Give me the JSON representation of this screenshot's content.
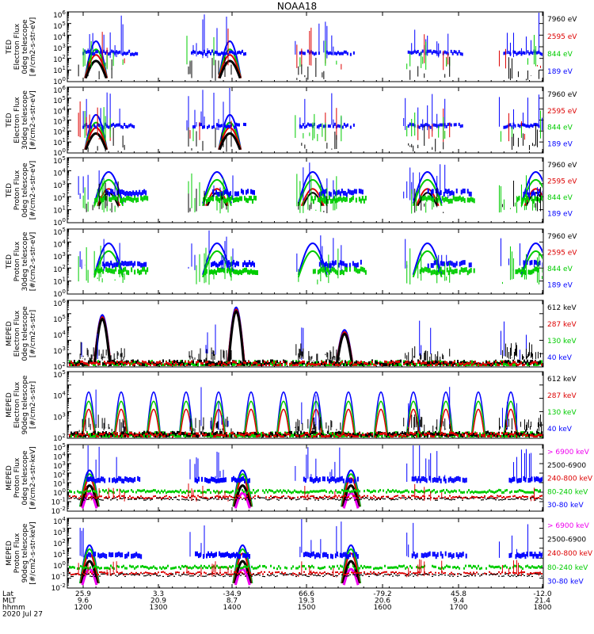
{
  "title": "NOAA18",
  "panels": [
    {
      "id": "p1",
      "ylabel": [
        "TED",
        "Electron Flux",
        "0deg telescope",
        "[#/cm2-s-str-eV]"
      ],
      "ylim": [
        1,
        1000000
      ],
      "ticks": [
        "10^6",
        "10^5",
        "10^4",
        "10^3",
        "10^2",
        "10^1",
        "10^0"
      ],
      "legend": [
        {
          "text": "7960 eV",
          "color": "#000000"
        },
        {
          "text": "2595 eV",
          "color": "#dd0000"
        },
        {
          "text": "844 eV",
          "color": "#00cc00"
        },
        {
          "text": "189 eV",
          "color": "#0000ff"
        }
      ]
    },
    {
      "id": "p2",
      "ylabel": [
        "TED",
        "Electron Flux",
        "30deg telescope",
        "[#/cm2-s-str-eV]"
      ],
      "ylim": [
        1,
        1000000
      ],
      "ticks": [
        "10^6",
        "10^5",
        "10^4",
        "10^3",
        "10^2",
        "10^1",
        "10^0"
      ],
      "legend": [
        {
          "text": "7960 eV",
          "color": "#000000"
        },
        {
          "text": "2595 eV",
          "color": "#dd0000"
        },
        {
          "text": "844 eV",
          "color": "#00cc00"
        },
        {
          "text": "189 eV",
          "color": "#0000ff"
        }
      ]
    },
    {
      "id": "p3",
      "ylabel": [
        "TED",
        "Proton Flux",
        "0deg telescope",
        "[#/cm2-s-str-eV]"
      ],
      "ylim": [
        1,
        100000
      ],
      "ticks": [
        "10^5",
        "10^4",
        "10^3",
        "10^2",
        "10^1",
        "10^0"
      ],
      "legend": [
        {
          "text": "7960 eV",
          "color": "#000000"
        },
        {
          "text": "2595 eV",
          "color": "#dd0000"
        },
        {
          "text": "844 eV",
          "color": "#00cc00"
        },
        {
          "text": "189 eV",
          "color": "#0000ff"
        }
      ]
    },
    {
      "id": "p4",
      "ylabel": [
        "TED",
        "Proton Flux",
        "30deg telescope",
        "[#/cm2-s-str-eV]"
      ],
      "ylim": [
        1,
        100000
      ],
      "ticks": [
        "10^5",
        "10^4",
        "10^3",
        "10^2",
        "10^1",
        "10^0"
      ],
      "legend": [
        {
          "text": "7960 eV",
          "color": "#000000"
        },
        {
          "text": "2595 eV",
          "color": "#dd0000"
        },
        {
          "text": "844 eV",
          "color": "#00cc00"
        },
        {
          "text": "189 eV",
          "color": "#0000ff"
        }
      ]
    },
    {
      "id": "p5",
      "ylabel": [
        "MEPED",
        "Electron Flux",
        "0deg telescope",
        "[#/cm2-s-str]"
      ],
      "ylim": [
        100,
        10000000
      ],
      "ticks": [
        "10^6",
        "10^5",
        "10^4",
        "10^3",
        "10^2"
      ],
      "legend": [
        {
          "text": "612 keV",
          "color": "#000000"
        },
        {
          "text": "287 keV",
          "color": "#dd0000"
        },
        {
          "text": "130 keV",
          "color": "#00cc00"
        },
        {
          "text": "40 keV",
          "color": "#0000ff"
        }
      ]
    },
    {
      "id": "p6",
      "ylabel": [
        "MEPED",
        "Electron Flux",
        "90deg telescope",
        "[#/cm2-s-str]"
      ],
      "ylim": [
        100,
        10000000
      ],
      "ticks": [
        "10^5",
        "10^4",
        "10^3",
        "10^2"
      ],
      "legend": [
        {
          "text": "612 keV",
          "color": "#000000"
        },
        {
          "text": "287 keV",
          "color": "#dd0000"
        },
        {
          "text": "130 keV",
          "color": "#00cc00"
        },
        {
          "text": "40 keV",
          "color": "#0000ff"
        }
      ]
    },
    {
      "id": "p7",
      "ylabel": [
        "MEPED",
        "Proton Flux",
        "0deg telescope",
        "[#/cm2-s-str-keV]"
      ],
      "ylim": [
        0.01,
        100000
      ],
      "ticks": [
        "10^5",
        "10^4",
        "10^3",
        "10^2",
        "10^1",
        "10^0",
        "10^-1",
        "10^-2"
      ],
      "legend": [
        {
          "text": "> 6900 keV",
          "color": "#ee00ee"
        },
        {
          "text": "2500-6900",
          "color": "#000000"
        },
        {
          "text": "240-800 keV",
          "color": "#dd0000"
        },
        {
          "text": "80-240 keV",
          "color": "#00cc00"
        },
        {
          "text": "30-80 keV",
          "color": "#0000ff"
        }
      ]
    },
    {
      "id": "p8",
      "ylabel": [
        "MEPED",
        "Proton Flux",
        "90deg telescope",
        "[#/cm2-s-str-keV]"
      ],
      "ylim": [
        0.01,
        100000
      ],
      "ticks": [
        "10^4",
        "10^3",
        "10^2",
        "10^1",
        "10^0",
        "10^-1",
        "10^-2"
      ],
      "legend": [
        {
          "text": "> 6900 keV",
          "color": "#ee00ee"
        },
        {
          "text": "2500-6900",
          "color": "#000000"
        },
        {
          "text": "240-800 keV",
          "color": "#dd0000"
        },
        {
          "text": "80-240 keV",
          "color": "#00cc00"
        },
        {
          "text": "30-80 keV",
          "color": "#0000ff"
        }
      ]
    }
  ],
  "xaxis": {
    "row_labels": [
      "Lat",
      "MLT",
      "hhmm",
      "2020 Jul 27"
    ],
    "ticks": [
      {
        "lat": "25.9",
        "mlt": "9.6",
        "hhmm": "1200"
      },
      {
        "lat": "3.3",
        "mlt": "20.9",
        "hhmm": "1300"
      },
      {
        "lat": "-34.9",
        "mlt": "8.7",
        "hhmm": "1400"
      },
      {
        "lat": "66.6",
        "mlt": "19.3",
        "hhmm": "1500"
      },
      {
        "lat": "-79.2",
        "mlt": "20.6",
        "hhmm": "1600"
      },
      {
        "lat": "45.8",
        "mlt": "9.4",
        "hhmm": "1700"
      },
      {
        "lat": "-12.0",
        "mlt": "21.4",
        "hhmm": "1800"
      }
    ]
  },
  "chart_data": {
    "type": "line",
    "title": "NOAA18",
    "xlabel": "hhmm (2020 Jul 27)",
    "x_range": [
      1200,
      1800
    ],
    "yscale": "log",
    "passes_hhmm": [
      1215,
      1340,
      1505,
      1630,
      1745
    ],
    "radiation_belt_peaks_hhmm": [
      1215,
      1400,
      1525
    ],
    "series_colors": {
      "blue": "#0000ff",
      "green": "#00cc00",
      "red": "#dd0000",
      "black": "#000000",
      "magenta": "#ee00ee"
    }
  }
}
